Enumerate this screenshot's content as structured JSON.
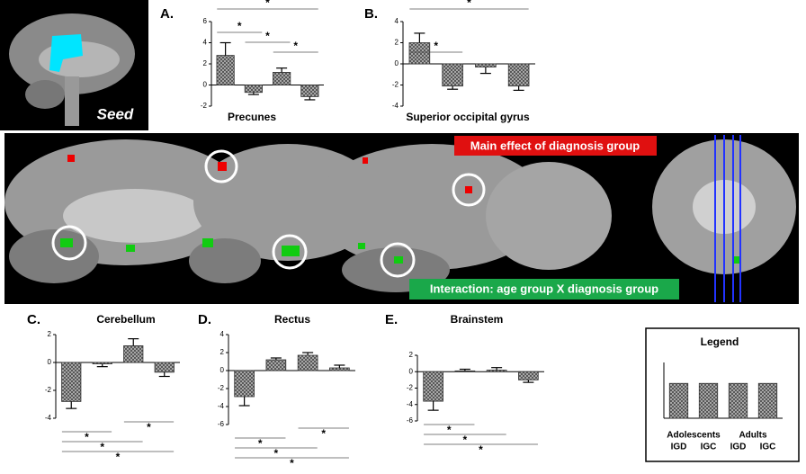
{
  "image_labels": {
    "seed": "Seed",
    "main_effect": "Main effect of diagnosis group",
    "interaction": "Interaction: age group X diagnosis group"
  },
  "chart_data": [
    {
      "type": "bar",
      "panel": "A.",
      "title": "Precunes",
      "values": [
        2.8,
        -0.7,
        1.2,
        -1.1
      ],
      "errors": [
        1.2,
        0.2,
        0.4,
        0.3
      ],
      "ylim": [
        -2,
        6
      ],
      "yticks": [
        -2,
        0,
        2,
        4,
        6
      ],
      "significance": [
        {
          "pair": [
            2,
            3
          ],
          "label": "*"
        },
        {
          "pair": [
            1,
            2
          ],
          "label": "*"
        },
        {
          "pair": [
            0,
            1
          ],
          "label": "*"
        },
        {
          "pair": [
            0,
            3
          ],
          "label": "*"
        }
      ],
      "sig_position": "above"
    },
    {
      "type": "bar",
      "panel": "B.",
      "title": "Superior occipital gyrus",
      "values": [
        2.0,
        -2.1,
        -0.3,
        -2.1
      ],
      "errors": [
        0.9,
        0.3,
        0.6,
        0.4
      ],
      "ylim": [
        -4,
        4
      ],
      "yticks": [
        -4,
        -2,
        0,
        2,
        4
      ],
      "significance": [
        {
          "pair": [
            0,
            1
          ],
          "label": "*"
        },
        {
          "pair": [
            0,
            3
          ],
          "label": "*"
        }
      ],
      "sig_position": "above"
    },
    {
      "type": "bar",
      "panel": "C.",
      "title": "Cerebellum",
      "values": [
        -2.8,
        -0.1,
        1.2,
        -0.7
      ],
      "errors": [
        0.5,
        0.2,
        0.5,
        0.3
      ],
      "ylim": [
        -4,
        2
      ],
      "yticks": [
        -4,
        -2,
        0,
        2
      ],
      "significance": [
        {
          "pair": [
            2,
            3
          ],
          "label": "*"
        },
        {
          "pair": [
            0,
            1
          ],
          "label": "*"
        },
        {
          "pair": [
            0,
            2
          ],
          "label": "*"
        },
        {
          "pair": [
            0,
            3
          ],
          "label": "*"
        }
      ],
      "sig_position": "below"
    },
    {
      "type": "bar",
      "panel": "D.",
      "title": "Rectus",
      "values": [
        -2.9,
        1.2,
        1.7,
        0.3
      ],
      "errors": [
        1.0,
        0.2,
        0.3,
        0.3
      ],
      "ylim": [
        -6,
        4
      ],
      "yticks": [
        -6,
        -4,
        -2,
        0,
        2,
        4
      ],
      "significance": [
        {
          "pair": [
            2,
            3
          ],
          "label": "*"
        },
        {
          "pair": [
            0,
            1
          ],
          "label": "*"
        },
        {
          "pair": [
            0,
            2
          ],
          "label": "*"
        },
        {
          "pair": [
            0,
            3
          ],
          "label": "*"
        }
      ],
      "sig_position": "below"
    },
    {
      "type": "bar",
      "panel": "E.",
      "title": "Brainstem",
      "values": [
        -3.6,
        0.1,
        0.2,
        -1.0
      ],
      "errors": [
        1.1,
        0.2,
        0.3,
        0.3
      ],
      "ylim": [
        -6,
        2
      ],
      "yticks": [
        -6,
        -4,
        -2,
        0,
        2
      ],
      "significance": [
        {
          "pair": [
            0,
            1
          ],
          "label": "*"
        },
        {
          "pair": [
            0,
            2
          ],
          "label": "*"
        },
        {
          "pair": [
            0,
            3
          ],
          "label": "*"
        }
      ],
      "sig_position": "below"
    },
    {
      "type": "legend",
      "title": "Legend",
      "categories": [
        "IGD",
        "IGC",
        "IGD",
        "IGC"
      ],
      "groups": [
        "Adolescents",
        "Adults"
      ],
      "values": [
        1,
        1,
        1,
        1
      ],
      "ylim": [
        0,
        1.6
      ]
    }
  ]
}
